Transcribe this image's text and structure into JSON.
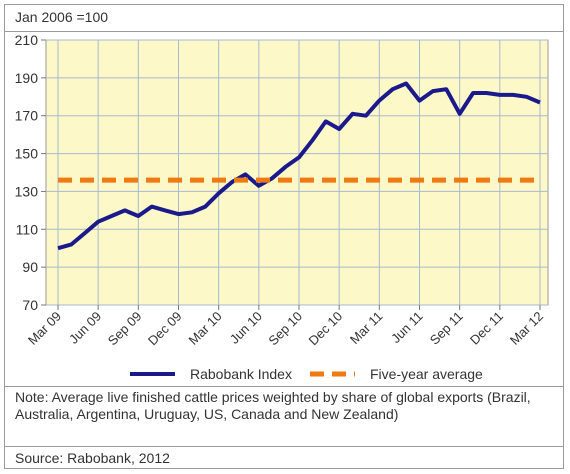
{
  "header_text": "Jan 2006 =100",
  "note_text": "Note: Average live finished cattle prices weighted by share of global exports (Brazil, Australia, Argentina, Uruguay, US, Canada and New Zealand)",
  "source_text": "Source: Rabobank, 2012",
  "chart_data": {
    "type": "line",
    "ylim": [
      70,
      210
    ],
    "yticks": [
      70,
      90,
      110,
      130,
      150,
      170,
      190,
      210
    ],
    "grid": true,
    "plot_background": "#fdf8c7",
    "legend_position": "bottom",
    "x_tick_labels": [
      "Mar 09",
      "Jun 09",
      "Sep 09",
      "Dec 09",
      "Mar 10",
      "Jun 10",
      "Sep 10",
      "Dec 10",
      "Mar 11",
      "Jun 11",
      "Sep 11",
      "Dec 11",
      "Mar 12"
    ],
    "series": [
      {
        "name": "Rabobank Index",
        "color": "#1a1a8c",
        "style": "solid",
        "x": [
          "Mar 09",
          "Apr 09",
          "May 09",
          "Jun 09",
          "Jul 09",
          "Aug 09",
          "Sep 09",
          "Oct 09",
          "Nov 09",
          "Dec 09",
          "Jan 10",
          "Feb 10",
          "Mar 10",
          "Apr 10",
          "May 10",
          "Jun 10",
          "Jul 10",
          "Aug 10",
          "Sep 10",
          "Oct 10",
          "Nov 10",
          "Dec 10",
          "Jan 11",
          "Feb 11",
          "Mar 11",
          "Apr 11",
          "May 11",
          "Jun 11",
          "Jul 11",
          "Aug 11",
          "Sep 11",
          "Oct 11",
          "Nov 11",
          "Dec 11",
          "Jan 12",
          "Feb 12",
          "Mar 12"
        ],
        "values": [
          100,
          102,
          108,
          114,
          117,
          120,
          117,
          122,
          120,
          118,
          119,
          122,
          129,
          135,
          139,
          133,
          137,
          143,
          148,
          157,
          167,
          163,
          171,
          170,
          178,
          184,
          187,
          178,
          183,
          184,
          171,
          182,
          182,
          181,
          181,
          180,
          177
        ]
      },
      {
        "name": "Five-year average",
        "color": "#f07a12",
        "style": "dashed",
        "x": [
          "Mar 09",
          "Mar 12"
        ],
        "values": [
          136,
          136
        ]
      }
    ]
  }
}
